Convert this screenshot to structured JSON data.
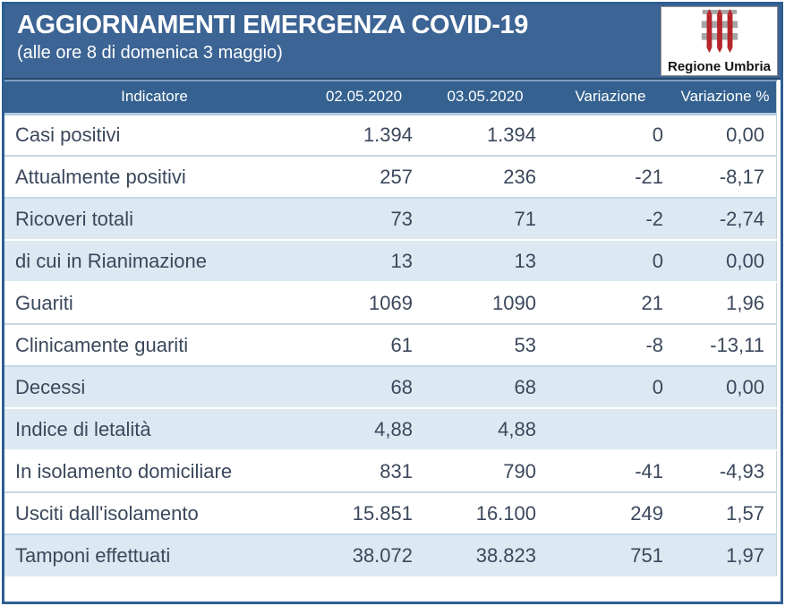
{
  "banner": {
    "title": "AGGIORNAMENTI EMERGENZA COVID-19",
    "subtitle": "(alle ore 8 di domenica 3 maggio)"
  },
  "logo": {
    "label": "Regione Umbria",
    "emblem": "umbria-gonfalone"
  },
  "colors": {
    "banner_bg": "#3C6494",
    "banner_divider": "#27476B",
    "header_row_bg": "#34618F",
    "header_text": "#FFFFFF",
    "shaded_row_bg": "#DCE9F2",
    "row_text": "#3B485C",
    "row_divider": "#C6D7E5",
    "frame_border": "#2F5E92",
    "logo_red": "#B6252A",
    "logo_gray": "#A6A6A6"
  },
  "chart_data": {
    "type": "table",
    "title": "AGGIORNAMENTI EMERGENZA COVID-19",
    "subtitle": "(alle ore 8 di domenica 3 maggio)",
    "columns": [
      "Indicatore",
      "02.05.2020",
      "03.05.2020",
      "Variazione",
      "Variazione %"
    ],
    "rows": [
      [
        "Casi positivi",
        "1.394",
        "1.394",
        "0",
        "0,00"
      ],
      [
        "Attualmente positivi",
        "257",
        "236",
        "-21",
        "-8,17"
      ],
      [
        "Ricoveri totali",
        "73",
        "71",
        "-2",
        "-2,74"
      ],
      [
        "di cui in Rianimazione",
        "13",
        "13",
        "0",
        "0,00"
      ],
      [
        "Guariti",
        "1069",
        "1090",
        "21",
        "1,96"
      ],
      [
        "Clinicamente guariti",
        "61",
        "53",
        "-8",
        "-13,11"
      ],
      [
        "Decessi",
        "68",
        "68",
        "0",
        "0,00"
      ],
      [
        "Indice di letalità",
        "4,88",
        "4,88",
        "",
        ""
      ],
      [
        "In isolamento domiciliare",
        "831",
        "790",
        "-41",
        "-4,93"
      ],
      [
        "Usciti dall'isolamento",
        "15.851",
        "16.100",
        "249",
        "1,57"
      ],
      [
        "Tamponi effettuati",
        "38.072",
        "38.823",
        "751",
        "1,97"
      ]
    ]
  }
}
